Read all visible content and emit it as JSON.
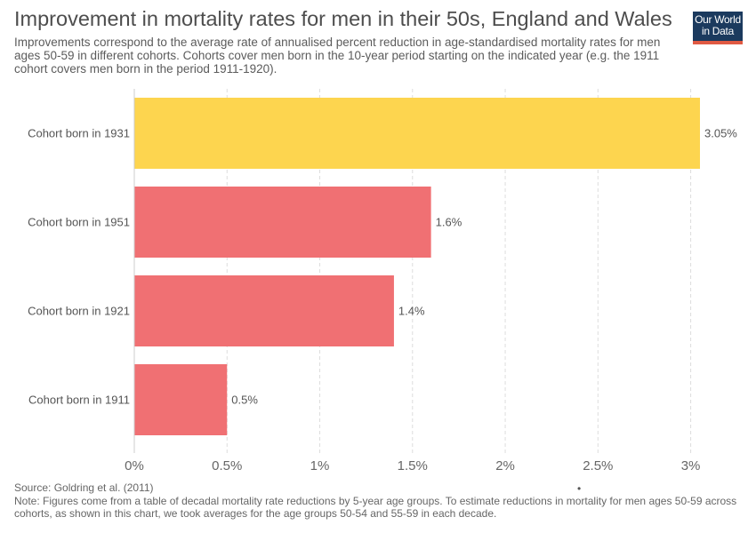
{
  "header": {
    "title": "Improvement in mortality rates for men in their 50s, England and Wales",
    "subtitle": "Improvements correspond to the average rate of annualised percent reduction in age-standardised mortality rates for men ages 50-59 in different cohorts. Cohorts cover men born in the 10-year period starting on the indicated year (e.g. the 1911 cohort covers men born in the period 1911-1920)."
  },
  "logo": {
    "line1": "Our World",
    "line2": "in Data",
    "bg_color": "#1b3a5e",
    "accent_color": "#e05a43"
  },
  "footer": {
    "source": "Source: Goldring et al. (2011)",
    "note": "Note: Figures come from a table of decadal mortality rate reductions by 5-year age groups. To estimate reductions in mortality for men ages 50-59 across cohorts, as shown in this chart, we took averages for the age groups 50-54 and 55-59 in each decade.",
    "dot": "•"
  },
  "chart_data": {
    "type": "bar",
    "orientation": "horizontal",
    "categories": [
      "Cohort born in 1931",
      "Cohort born in 1951",
      "Cohort born in 1921",
      "Cohort born in 1911"
    ],
    "values": [
      3.05,
      1.6,
      1.4,
      0.5
    ],
    "value_labels": [
      "3.05%",
      "1.6%",
      "1.4%",
      "0.5%"
    ],
    "colors": [
      "#fdd54f",
      "#f07073",
      "#f07073",
      "#f07073"
    ],
    "xlim": [
      0,
      3.05
    ],
    "xticks": [
      0,
      0.5,
      1,
      1.5,
      2,
      2.5,
      3
    ],
    "xtick_labels": [
      "0%",
      "0.5%",
      "1%",
      "1.5%",
      "2%",
      "2.5%",
      "3%"
    ],
    "grid": "vertical dashed",
    "xlabel": "",
    "ylabel": ""
  }
}
